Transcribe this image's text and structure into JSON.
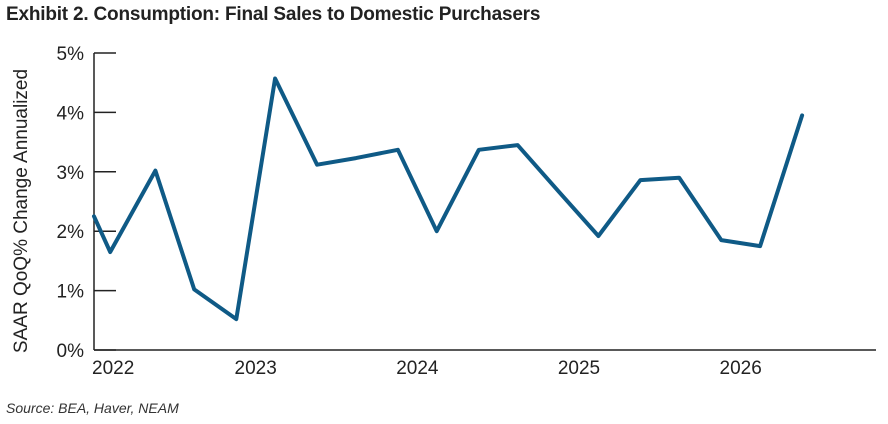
{
  "title": "Exhibit 2. Consumption: Final Sales to Domestic Purchasers",
  "source": "Source: BEA, Haver, NEAM",
  "chart_data": {
    "type": "line",
    "title": "Exhibit 2. Consumption: Final Sales to Domestic Purchasers",
    "xlabel": "",
    "ylabel": "SAAR QoQ% Change Annualized",
    "ylim": [
      0,
      5
    ],
    "xlim": [
      2022.0,
      2026.8
    ],
    "yticks": [
      0,
      1,
      2,
      3,
      4,
      5
    ],
    "ytick_labels": [
      "0%",
      "1%",
      "2%",
      "3%",
      "4%",
      "5%"
    ],
    "xticks": [
      2022,
      2023,
      2024,
      2025,
      2026
    ],
    "xtick_labels": [
      "2022",
      "2023",
      "2024",
      "2025",
      "2026"
    ],
    "grid": false,
    "series": [
      {
        "name": "",
        "color": "#0f5a86",
        "x": [
          2022.0,
          2022.1,
          2022.38,
          2022.62,
          2022.88,
          2023.12,
          2023.38,
          2023.62,
          2023.88,
          2024.12,
          2024.38,
          2024.62,
          2024.88,
          2025.12,
          2025.38,
          2025.62,
          2025.88,
          2026.12,
          2026.38
        ],
        "values": [
          2.25,
          1.65,
          3.02,
          1.02,
          0.52,
          4.57,
          3.12,
          3.23,
          3.37,
          2.0,
          3.37,
          3.45,
          2.65,
          1.92,
          2.86,
          2.9,
          1.85,
          1.75,
          3.95
        ]
      }
    ]
  }
}
